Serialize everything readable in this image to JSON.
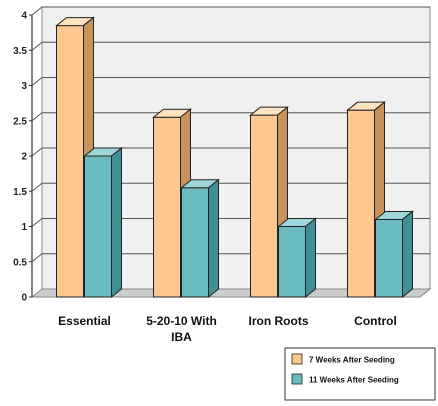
{
  "chart_data": {
    "type": "bar",
    "categories": [
      "Essential",
      "5-20-10 With IBA",
      "Iron Roots",
      "Control"
    ],
    "series": [
      {
        "name": "7 Weeks After Seeding",
        "values": [
          3.85,
          2.55,
          2.58,
          2.65
        ]
      },
      {
        "name": "11 Weeks After Seeding",
        "values": [
          2.0,
          1.55,
          1.0,
          1.1
        ]
      }
    ],
    "ylim": [
      0,
      4
    ],
    "yticks": [
      "0",
      "0.5",
      "1",
      "1.5",
      "2",
      "2.5",
      "3",
      "3.5",
      "4"
    ],
    "grid": true,
    "legend_position": "bottom-right",
    "colors": {
      "series": [
        "#fcc88f",
        "#6bbcc0"
      ],
      "series_top": [
        "#fde2c0",
        "#9ed6d9"
      ],
      "series_side": [
        "#c8935a",
        "#3f8f94"
      ],
      "wall": "#f0f0f0",
      "floor": "#cccccc",
      "grid": "#555555"
    }
  }
}
